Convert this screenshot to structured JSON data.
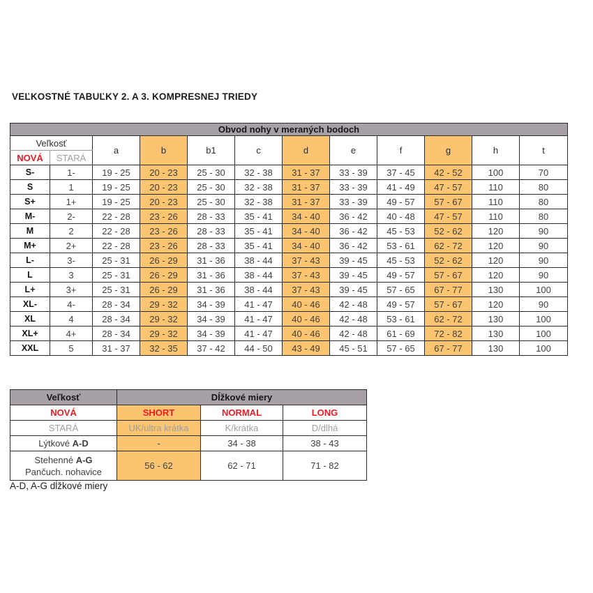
{
  "page": {
    "title": "VEĽKOSTNÉ TABUĽKY 2. A 3. KOMPRESNEJ TRIEDY",
    "footnote": "A-D, A-G dĺžkové miery"
  },
  "colors": {
    "gray_banner": "#A7A1A7",
    "highlight_orange": "#FAC471",
    "red_text": "#ED1C24",
    "old_gray_text": "#9F9F9F"
  },
  "size_table": {
    "banner": "Obvod nohy v meraných bodoch",
    "size_header": "Veľkosť",
    "new_label": "NOVÁ",
    "old_label": "STARÁ",
    "columns": [
      "a",
      "b",
      "b1",
      "c",
      "d",
      "e",
      "f",
      "g",
      "h",
      "t"
    ],
    "highlight_columns": [
      "b",
      "d",
      "g"
    ],
    "rows": [
      {
        "new": "S-",
        "old": "1-",
        "a": "19 - 25",
        "b": "20 - 23",
        "b1": "25 - 30",
        "c": "32 - 38",
        "d": "31 - 37",
        "e": "33 - 39",
        "f": "37 - 45",
        "g": "42 - 52",
        "h": "100",
        "t": "70"
      },
      {
        "new": "S",
        "old": "1",
        "a": "19 - 25",
        "b": "20 - 23",
        "b1": "25 - 30",
        "c": "32 - 38",
        "d": "31 - 37",
        "e": "33 - 39",
        "f": "41 - 49",
        "g": "47 - 57",
        "h": "110",
        "t": "80"
      },
      {
        "new": "S+",
        "old": "1+",
        "a": "19 - 25",
        "b": "20 - 23",
        "b1": "25 - 30",
        "c": "32 - 38",
        "d": "31 - 37",
        "e": "33 - 39",
        "f": "49 - 57",
        "g": "57 - 67",
        "h": "110",
        "t": "80"
      },
      {
        "new": "M-",
        "old": "2-",
        "a": "22 - 28",
        "b": "23 - 26",
        "b1": "28 - 33",
        "c": "35 - 41",
        "d": "34 - 40",
        "e": "36 - 42",
        "f": "40 - 48",
        "g": "47 - 57",
        "h": "110",
        "t": "80"
      },
      {
        "new": "M",
        "old": "2",
        "a": "22 - 28",
        "b": "23 - 26",
        "b1": "28 - 33",
        "c": "35 - 41",
        "d": "34 - 40",
        "e": "36 - 42",
        "f": "45 - 53",
        "g": "52 - 62",
        "h": "120",
        "t": "90"
      },
      {
        "new": "M+",
        "old": "2+",
        "a": "22 - 28",
        "b": "23 - 26",
        "b1": "28 - 33",
        "c": "35 - 41",
        "d": "34 - 40",
        "e": "36 - 42",
        "f": "53 - 61",
        "g": "62 - 72",
        "h": "120",
        "t": "90"
      },
      {
        "new": "L-",
        "old": "3-",
        "a": "25 - 31",
        "b": "26 - 29",
        "b1": "31 - 36",
        "c": "38 - 44",
        "d": "37 - 43",
        "e": "39 - 45",
        "f": "45 - 53",
        "g": "52 - 62",
        "h": "120",
        "t": "90"
      },
      {
        "new": "L",
        "old": "3",
        "a": "25 - 31",
        "b": "26 - 29",
        "b1": "31 - 36",
        "c": "38 - 44",
        "d": "37 - 43",
        "e": "39 - 45",
        "f": "49 - 57",
        "g": "57 - 67",
        "h": "120",
        "t": "90"
      },
      {
        "new": "L+",
        "old": "3+",
        "a": "25 - 31",
        "b": "26 - 29",
        "b1": "31 - 36",
        "c": "38 - 44",
        "d": "37 - 43",
        "e": "39 - 45",
        "f": "57 - 65",
        "g": "67 - 77",
        "h": "130",
        "t": "100"
      },
      {
        "new": "XL-",
        "old": "4-",
        "a": "28 - 34",
        "b": "29 - 32",
        "b1": "34 - 39",
        "c": "41 - 47",
        "d": "40 - 46",
        "e": "42 - 48",
        "f": "49 - 57",
        "g": "57 - 67",
        "h": "120",
        "t": "90"
      },
      {
        "new": "XL",
        "old": "4",
        "a": "28 - 34",
        "b": "29 - 32",
        "b1": "34 - 39",
        "c": "41 - 47",
        "d": "40 - 46",
        "e": "42 - 48",
        "f": "53 - 61",
        "g": "62 - 72",
        "h": "130",
        "t": "100"
      },
      {
        "new": "XL+",
        "old": "4+",
        "a": "28 - 34",
        "b": "29 - 32",
        "b1": "34 - 39",
        "c": "41 - 47",
        "d": "40 - 46",
        "e": "42 - 48",
        "f": "61 - 69",
        "g": "72 - 82",
        "h": "130",
        "t": "100"
      },
      {
        "new": "XXL",
        "old": "5",
        "a": "31 - 37",
        "b": "32 - 35",
        "b1": "37 - 42",
        "c": "44 - 50",
        "d": "43 - 49",
        "e": "45 - 51",
        "f": "57 - 65",
        "g": "67 - 77",
        "h": "130",
        "t": "100"
      }
    ]
  },
  "length_table": {
    "size_header": "Veľkosť",
    "banner": "Dĺžkové miery",
    "new_label": "NOVÁ",
    "old_label": "STARÁ",
    "length_columns": [
      "SHORT",
      "NORMAL",
      "LONG"
    ],
    "old_names": [
      "UK/ultra krátka",
      "K/krátka",
      "D/dlhá"
    ],
    "rows": [
      {
        "prefix": "Lýtkové ",
        "bold": "A-D",
        "line2": "",
        "values": [
          "-",
          "34 - 38",
          "38 - 43"
        ]
      },
      {
        "prefix": "Stehenné ",
        "bold": "A-G",
        "line2": "Pančuch. nohavice",
        "values": [
          "56 - 62",
          "62 - 71",
          "71 - 82"
        ]
      }
    ]
  }
}
